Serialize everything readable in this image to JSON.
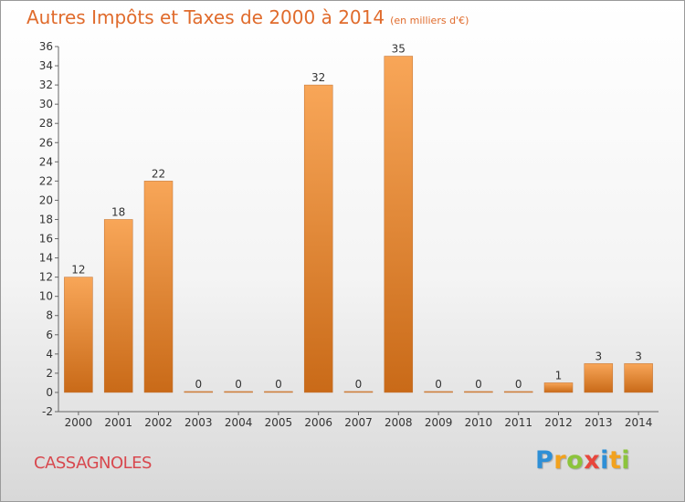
{
  "header": {
    "title": "Autres Impôts et Taxes de 2000 à 2014",
    "subtitle": "(en milliers d'€)"
  },
  "footer": {
    "place": "CASSAGNOLES",
    "logo_letters": [
      {
        "char": "P",
        "color": "#2e8fd6"
      },
      {
        "char": "r",
        "color": "#f2a21e"
      },
      {
        "char": "o",
        "color": "#8cc43c"
      },
      {
        "char": "x",
        "color": "#e8463c"
      },
      {
        "char": "i",
        "color": "#2e8fd6"
      },
      {
        "char": "t",
        "color": "#f2a21e"
      },
      {
        "char": "i",
        "color": "#8cc43c"
      }
    ]
  },
  "chart_data": {
    "type": "bar",
    "categories": [
      "2000",
      "2001",
      "2002",
      "2003",
      "2004",
      "2005",
      "2006",
      "2007",
      "2008",
      "2009",
      "2010",
      "2011",
      "2012",
      "2013",
      "2014"
    ],
    "values": [
      12,
      18,
      22,
      0,
      0,
      0,
      32,
      0,
      35,
      0,
      0,
      0,
      1,
      3,
      3
    ],
    "title": "Autres Impôts et Taxes de 2000 à 2014",
    "ylim": [
      -2,
      36
    ],
    "ytick_step": 2,
    "grid": false,
    "bar_color_top": "#f8a658",
    "bar_color_bottom": "#c96a18"
  }
}
